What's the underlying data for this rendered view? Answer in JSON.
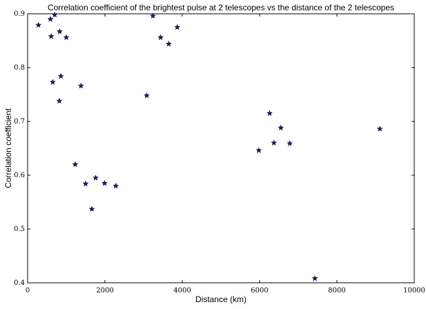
{
  "chart_data": {
    "type": "scatter",
    "title": "Correlation coefficient of the brightest pulse at 2 telescopes vs the distance of the 2 telescopes",
    "xlabel": "Distance (km)",
    "ylabel": "Correlation coefficient",
    "xlim": [
      0,
      10000
    ],
    "ylim": [
      0.4,
      0.9
    ],
    "xticks": [
      0,
      2000,
      4000,
      6000,
      8000,
      10000
    ],
    "xtick_labels": [
      "0",
      "2000",
      "4000",
      "6000",
      "8000",
      "10000"
    ],
    "yticks": [
      0.4,
      0.5,
      0.6,
      0.7,
      0.8,
      0.9
    ],
    "ytick_labels": [
      "0.4",
      "0.5",
      "0.6",
      "0.7",
      "0.8",
      "0.9"
    ],
    "grid": false,
    "marker": "star",
    "marker_color": "#1a1a6e",
    "points": [
      {
        "x": 280,
        "y": 0.879
      },
      {
        "x": 590,
        "y": 0.89
      },
      {
        "x": 700,
        "y": 0.898
      },
      {
        "x": 610,
        "y": 0.858
      },
      {
        "x": 830,
        "y": 0.867
      },
      {
        "x": 1000,
        "y": 0.856
      },
      {
        "x": 650,
        "y": 0.773
      },
      {
        "x": 860,
        "y": 0.784
      },
      {
        "x": 820,
        "y": 0.738
      },
      {
        "x": 1380,
        "y": 0.766
      },
      {
        "x": 1230,
        "y": 0.62
      },
      {
        "x": 1500,
        "y": 0.584
      },
      {
        "x": 1760,
        "y": 0.595
      },
      {
        "x": 1990,
        "y": 0.585
      },
      {
        "x": 2280,
        "y": 0.58
      },
      {
        "x": 1660,
        "y": 0.537
      },
      {
        "x": 3080,
        "y": 0.748
      },
      {
        "x": 3240,
        "y": 0.896
      },
      {
        "x": 3440,
        "y": 0.856
      },
      {
        "x": 3650,
        "y": 0.844
      },
      {
        "x": 3870,
        "y": 0.875
      },
      {
        "x": 5980,
        "y": 0.646
      },
      {
        "x": 6260,
        "y": 0.715
      },
      {
        "x": 6370,
        "y": 0.66
      },
      {
        "x": 6550,
        "y": 0.688
      },
      {
        "x": 6780,
        "y": 0.659
      },
      {
        "x": 7430,
        "y": 0.408
      },
      {
        "x": 9110,
        "y": 0.686
      }
    ]
  }
}
